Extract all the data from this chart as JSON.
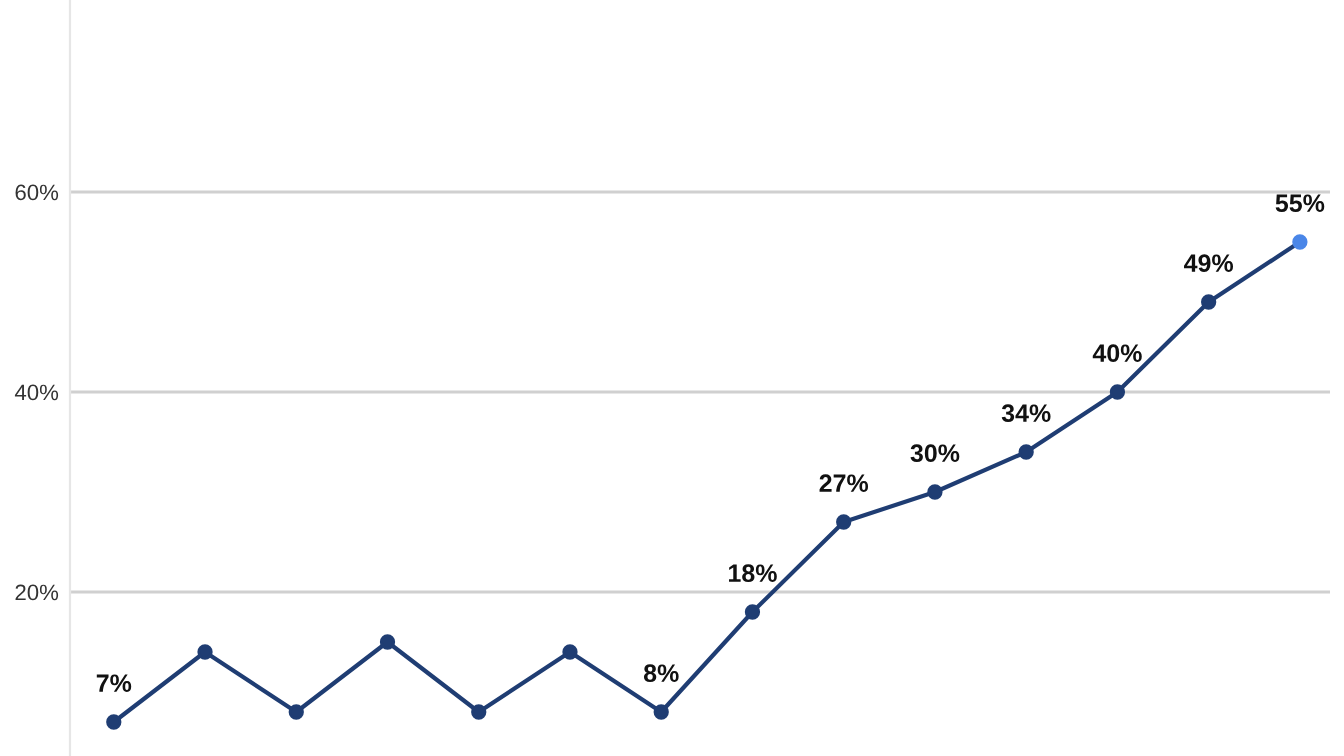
{
  "chart_data": {
    "type": "line",
    "categories": [
      null,
      null,
      null,
      null,
      null,
      null,
      null,
      null,
      null,
      null,
      null,
      null,
      null,
      null
    ],
    "series": [
      {
        "color": "#1f3d73",
        "colors": [
          "#1f3d73",
          "#1f3d73",
          "#1f3d73",
          "#1f3d73",
          "#1f3d73",
          "#1f3d73",
          "#1f3d73",
          "#1f3d73",
          "#1f3d73",
          "#1f3d73",
          "#1f3d73",
          "#1f3d73",
          "#1f3d73",
          "#4a86e8"
        ],
        "values": [
          7,
          14,
          8,
          15,
          8,
          14,
          8,
          18,
          27,
          30,
          34,
          40,
          49,
          55
        ],
        "value_labels": [
          "7%",
          null,
          null,
          null,
          null,
          null,
          "8%",
          "18%",
          "27%",
          "30%",
          "34%",
          "40%",
          "49%",
          "55%"
        ]
      }
    ],
    "ylim": [
      3.6,
      79.2
    ],
    "yticks": [
      {
        "value": 20,
        "label": "20%"
      },
      {
        "value": 40,
        "label": "40%"
      },
      {
        "value": 60,
        "label": "60%"
      }
    ],
    "grid": "y",
    "marker": "circle",
    "line_style": "solid",
    "legend": false,
    "tick_labels": "y"
  }
}
